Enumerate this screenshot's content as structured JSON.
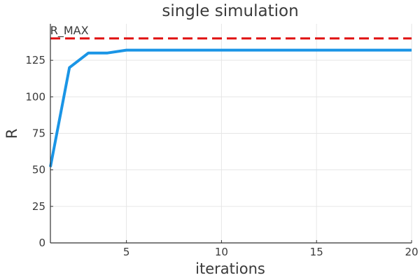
{
  "chart_data": {
    "type": "line",
    "title": "single simulation",
    "xlabel": "iterations",
    "ylabel": "R",
    "xlim": [
      1,
      20
    ],
    "ylim": [
      0,
      150
    ],
    "xticks": [
      5,
      10,
      15,
      20
    ],
    "yticks": [
      0,
      25,
      50,
      75,
      100,
      125
    ],
    "grid": true,
    "series": [
      {
        "color": "#1a95e6",
        "x": [
          1,
          2,
          3,
          4,
          5,
          6,
          7,
          8,
          9,
          10,
          11,
          12,
          13,
          14,
          15,
          16,
          17,
          18,
          19,
          20
        ],
        "y": [
          52,
          120,
          130,
          130,
          132,
          132,
          132,
          132,
          132,
          132,
          132,
          132,
          132,
          132,
          132,
          132,
          132,
          132,
          132,
          132
        ]
      }
    ],
    "reference_lines": [
      {
        "label": "R_MAX",
        "y": 140,
        "color": "#e01010",
        "style": "dashed",
        "label_x": 2
      }
    ]
  }
}
